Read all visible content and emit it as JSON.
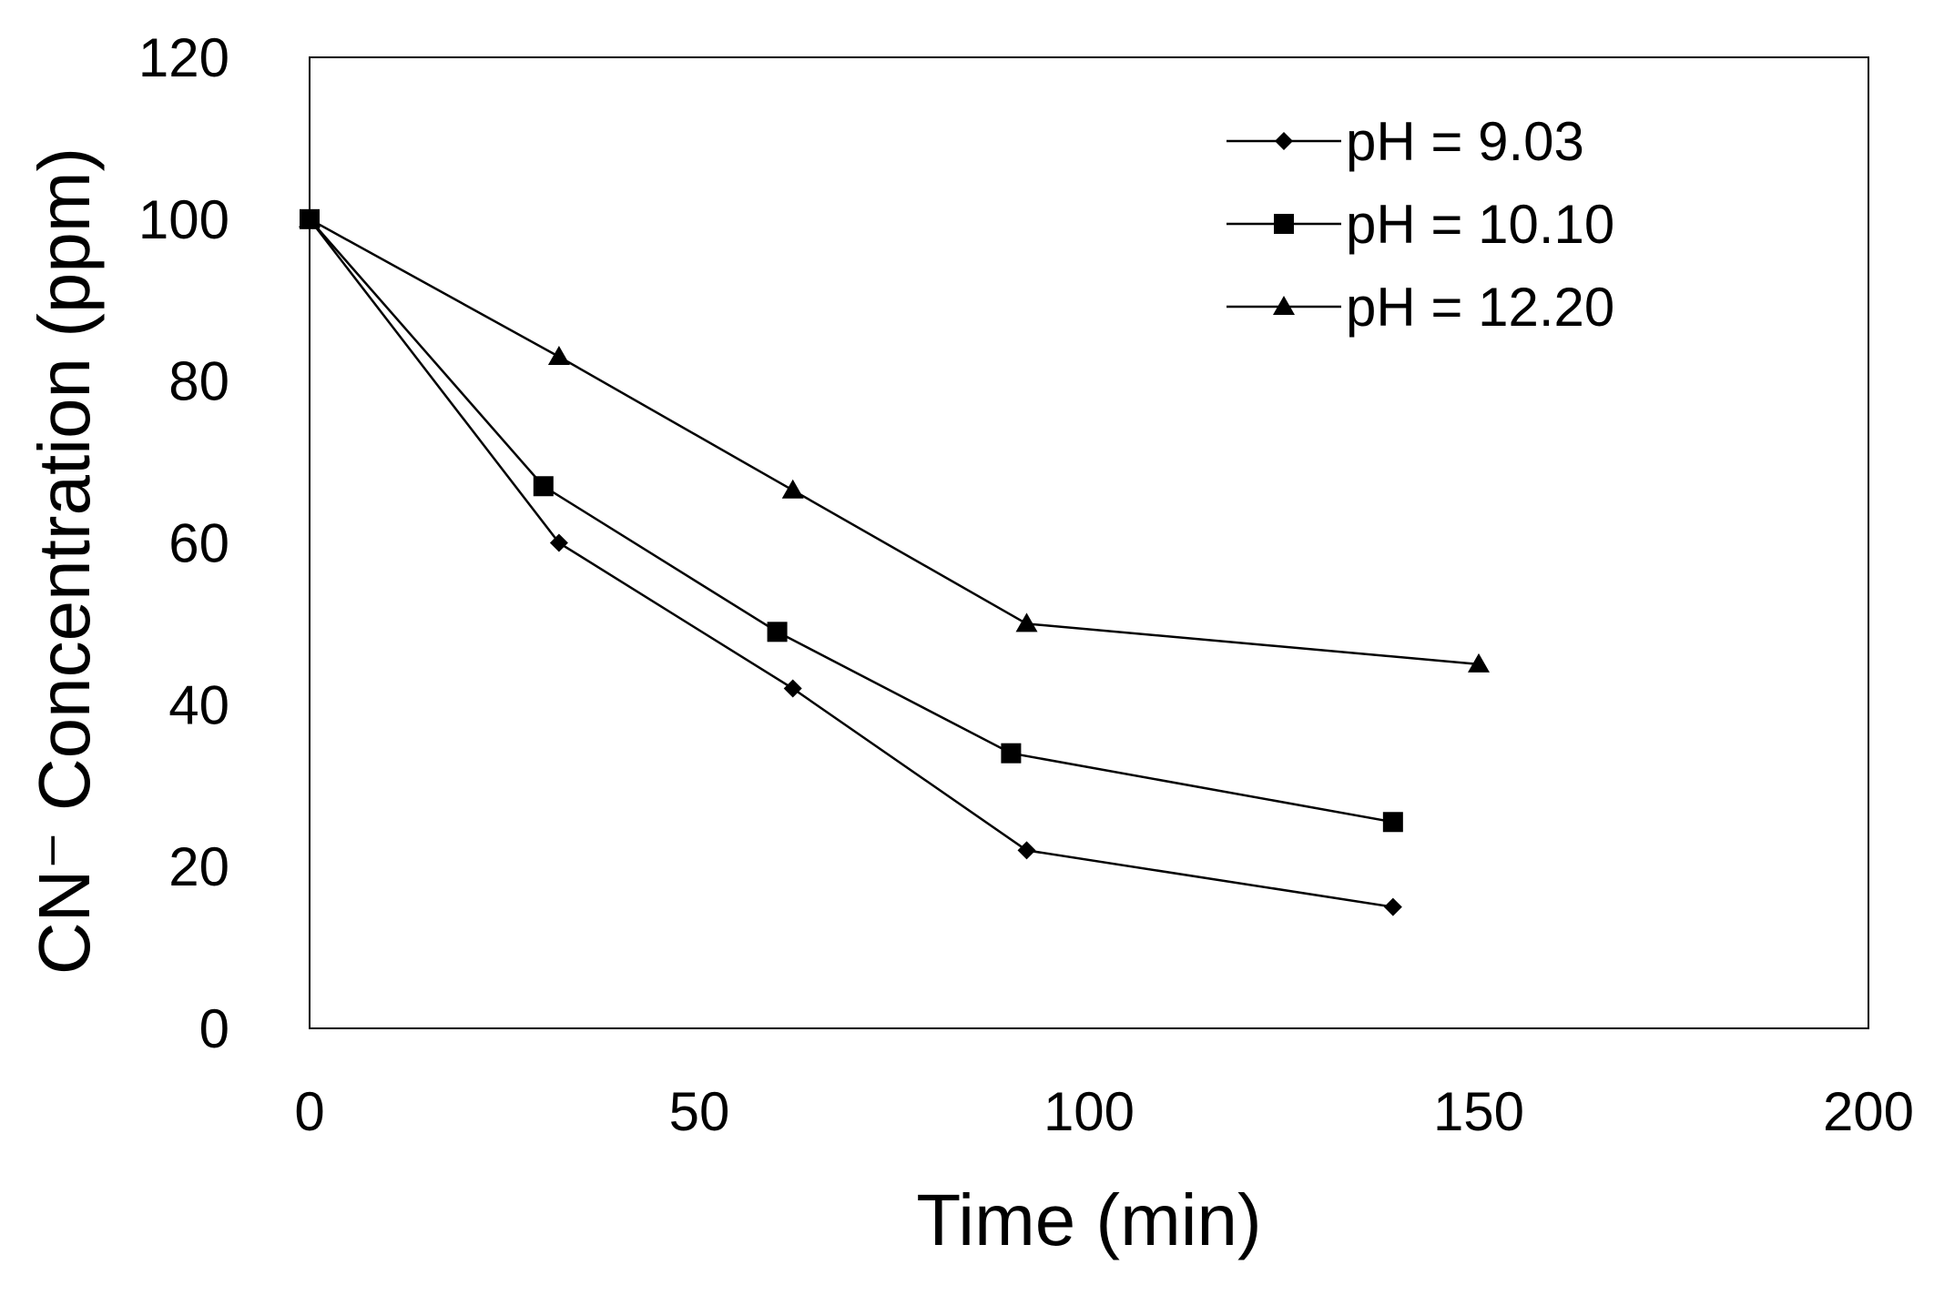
{
  "chart_data": {
    "type": "line",
    "title": "",
    "xlabel": "Time (min)",
    "ylabel": "CN⁻ Concentration (ppm)",
    "xlim": [
      0,
      200
    ],
    "ylim": [
      0,
      120
    ],
    "x_ticks": [
      0,
      50,
      100,
      150,
      200
    ],
    "y_ticks": [
      0,
      20,
      40,
      60,
      80,
      100,
      120
    ],
    "x_tick_labels": [
      "0",
      "50",
      "100",
      "150",
      "200"
    ],
    "y_tick_labels": [
      "0",
      "20",
      "40",
      "60",
      "80",
      "100",
      "120"
    ],
    "grid": false,
    "legend_position": "top-right",
    "series": [
      {
        "name": "pH = 9.03",
        "marker": "diamond",
        "x": [
          0,
          32,
          62,
          92,
          139
        ],
        "y": [
          100,
          60,
          42,
          22,
          15
        ]
      },
      {
        "name": "pH = 10.10",
        "marker": "square",
        "x": [
          0,
          30,
          60,
          90,
          139
        ],
        "y": [
          100,
          67,
          49,
          34,
          25.5
        ]
      },
      {
        "name": "pH = 12.20",
        "marker": "triangle",
        "x": [
          0,
          32,
          62,
          92,
          150
        ],
        "y": [
          100,
          83,
          66.5,
          50,
          45
        ]
      }
    ]
  }
}
